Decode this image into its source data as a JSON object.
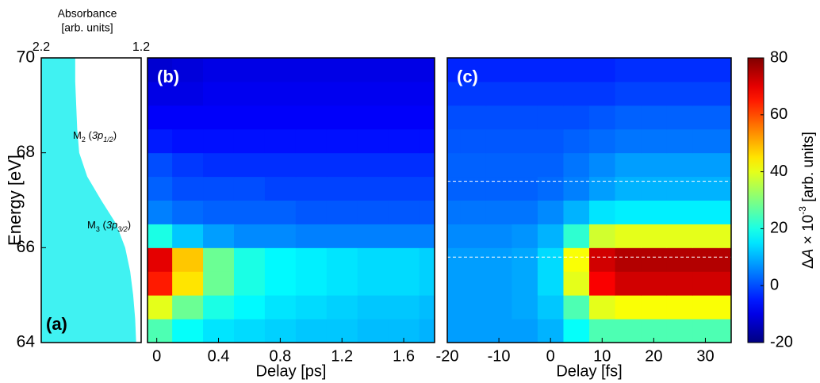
{
  "chart_data": [
    {
      "type": "area",
      "panel": "(a)",
      "title": [
        "Absorbance",
        "[arb. units]"
      ],
      "ylabel": "Energy [eV]",
      "xlim": [
        2.2,
        1.2
      ],
      "xticks": [
        2.2,
        1.2
      ],
      "ylim": [
        64,
        70
      ],
      "yticks": [
        64,
        66,
        68,
        70
      ],
      "x": [
        64,
        64.5,
        65,
        65.5,
        66,
        66.5,
        67,
        67.5,
        68,
        68.5,
        69,
        69.5,
        70
      ],
      "values": [
        1.25,
        1.26,
        1.28,
        1.31,
        1.36,
        1.45,
        1.6,
        1.74,
        1.82,
        1.84,
        1.85,
        1.86,
        1.86
      ],
      "color": "#40f2f2",
      "annotations": [
        [
          "M",
          "2",
          " (",
          "3p",
          "1/2",
          ")"
        ],
        [
          "M",
          "3",
          " (",
          "3p",
          "3/2",
          ")"
        ]
      ]
    },
    {
      "type": "heatmap",
      "panel": "(b)",
      "xlabel": "Delay [ps]",
      "xlim": [
        -0.06,
        1.8
      ],
      "xticks": [
        0,
        0.4,
        0.8,
        1.2,
        1.6
      ],
      "ylim": [
        64,
        70
      ],
      "x": [
        0,
        0.2,
        0.4,
        0.6,
        0.8,
        1.0,
        1.2,
        1.4,
        1.6,
        1.8
      ],
      "y": [
        64.25,
        64.75,
        65.25,
        65.75,
        66.25,
        66.75,
        67.25,
        67.75,
        68.25,
        68.75,
        69.25,
        69.75
      ],
      "z": [
        [
          25,
          18,
          15,
          14,
          13,
          12,
          12,
          11,
          11,
          10
        ],
        [
          40,
          28,
          20,
          17,
          15,
          14,
          13,
          12,
          12,
          11
        ],
        [
          65,
          45,
          28,
          20,
          17,
          16,
          15,
          14,
          14,
          13
        ],
        [
          70,
          48,
          28,
          20,
          17,
          16,
          15,
          14,
          14,
          13
        ],
        [
          20,
          12,
          8,
          6,
          6,
          5,
          5,
          5,
          5,
          5
        ],
        [
          5,
          3,
          2,
          2,
          2,
          1,
          1,
          1,
          1,
          1
        ],
        [
          2,
          0,
          0,
          0,
          -1,
          -1,
          -1,
          -1,
          -1,
          -1
        ],
        [
          0,
          -2,
          -3,
          -3,
          -3,
          -3,
          -3,
          -3,
          -3,
          -3
        ],
        [
          -5,
          -6,
          -6,
          -6,
          -6,
          -6,
          -6,
          -6,
          -6,
          -6
        ],
        [
          -8,
          -8,
          -8,
          -8,
          -8,
          -8,
          -8,
          -8,
          -8,
          -8
        ],
        [
          -10,
          -10,
          -9,
          -9,
          -9,
          -9,
          -9,
          -9,
          -9,
          -9
        ],
        [
          -12,
          -11,
          -10,
          -10,
          -10,
          -10,
          -10,
          -10,
          -10,
          -10
        ]
      ]
    },
    {
      "type": "heatmap",
      "panel": "(c)",
      "xlabel": "Delay [fs]",
      "xlim": [
        -20,
        35
      ],
      "xticks": [
        -20,
        -10,
        0,
        10,
        20,
        30
      ],
      "ylim": [
        64,
        70
      ],
      "x": [
        -20,
        -15,
        -10,
        -5,
        0,
        5,
        10,
        15,
        20,
        25,
        30,
        35
      ],
      "y": [
        64.25,
        64.75,
        65.25,
        65.75,
        66.25,
        66.75,
        67.25,
        67.75,
        68.25,
        68.75,
        69.25,
        69.75
      ],
      "z": [
        [
          8,
          8,
          8,
          8,
          10,
          18,
          25,
          25,
          25,
          25,
          25,
          25
        ],
        [
          8,
          8,
          8,
          9,
          12,
          25,
          40,
          42,
          42,
          42,
          42,
          42
        ],
        [
          8,
          8,
          8,
          9,
          14,
          40,
          68,
          72,
          72,
          72,
          72,
          72
        ],
        [
          8,
          8,
          8,
          9,
          14,
          42,
          72,
          75,
          75,
          75,
          75,
          75
        ],
        [
          6,
          6,
          6,
          7,
          10,
          22,
          38,
          40,
          40,
          40,
          40,
          40
        ],
        [
          4,
          4,
          4,
          4,
          6,
          10,
          15,
          16,
          16,
          16,
          16,
          16
        ],
        [
          2,
          2,
          2,
          2,
          3,
          5,
          8,
          10,
          10,
          10,
          10,
          10
        ],
        [
          2,
          2,
          2,
          2,
          2,
          4,
          6,
          8,
          8,
          8,
          8,
          8
        ],
        [
          1,
          1,
          1,
          1,
          1,
          2,
          3,
          4,
          4,
          4,
          4,
          4
        ],
        [
          0,
          0,
          0,
          0,
          0,
          0,
          1,
          2,
          2,
          2,
          2,
          2
        ],
        [
          -2,
          -2,
          -2,
          -2,
          -2,
          -2,
          -2,
          -1,
          -1,
          -1,
          -1,
          -1
        ],
        [
          -4,
          -4,
          -4,
          -4,
          -4,
          -4,
          -4,
          -3,
          -3,
          -3,
          -3,
          -3
        ]
      ],
      "hlines": [
        67.4,
        65.8
      ]
    },
    {
      "type": "colorbar",
      "label": [
        "Δ",
        "A",
        " × 10",
        "-3",
        " [arb. units]"
      ],
      "zlim": [
        -20,
        80
      ],
      "zticks": [
        -20,
        0,
        20,
        40,
        60,
        80
      ]
    }
  ]
}
